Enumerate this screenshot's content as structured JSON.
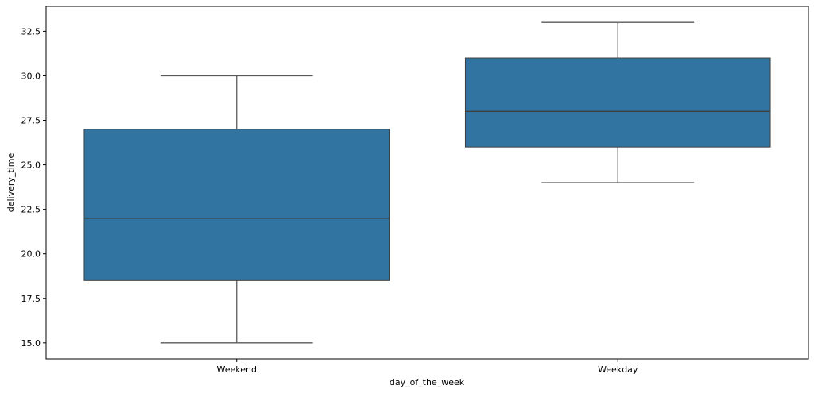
{
  "chart_data": {
    "type": "box",
    "title": "",
    "xlabel": "day_of_the_week",
    "ylabel": "delivery_time",
    "categories": [
      "Weekend",
      "Weekday"
    ],
    "boxes": [
      {
        "category": "Weekend",
        "whisker_low": 15.0,
        "q1": 18.5,
        "median": 22.0,
        "q3": 27.0,
        "whisker_high": 30.0
      },
      {
        "category": "Weekday",
        "whisker_low": 24.0,
        "q1": 26.0,
        "median": 28.0,
        "q3": 31.0,
        "whisker_high": 33.0
      }
    ],
    "ylim": [
      14.1,
      33.9
    ],
    "yticks": [
      15.0,
      17.5,
      20.0,
      22.5,
      25.0,
      27.5,
      30.0,
      32.5
    ],
    "ytick_labels": [
      "15.0",
      "17.5",
      "20.0",
      "22.5",
      "25.0",
      "27.5",
      "30.0",
      "32.5"
    ],
    "grid": false,
    "colors": {
      "box_fill": "#3274a1",
      "box_edge": "#3f3f3f",
      "whisker": "#5a5a5a",
      "axis": "#000000"
    }
  }
}
